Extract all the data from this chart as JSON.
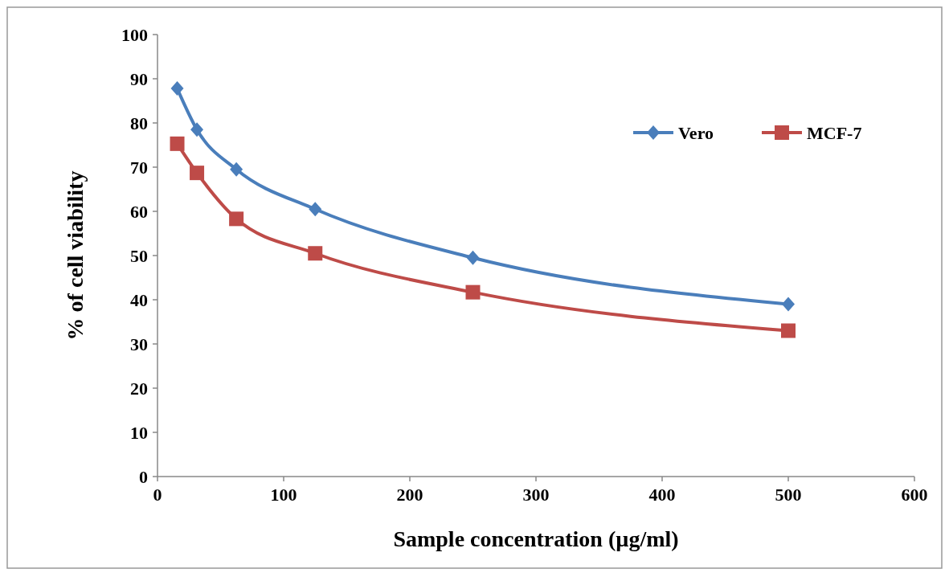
{
  "chart_data": {
    "type": "line",
    "xlabel": "Sample concentration (µg/ml)",
    "ylabel": "% of cell viability",
    "x": [
      15.625,
      31.25,
      62.5,
      125,
      250,
      500
    ],
    "series": [
      {
        "name": "Vero",
        "color": "#4a7ebb",
        "marker": "diamond",
        "values": [
          87.8,
          78.5,
          69.5,
          60.5,
          49.5,
          39
        ]
      },
      {
        "name": "MCF-7",
        "color": "#be4b48",
        "marker": "square",
        "values": [
          75.3,
          68.7,
          58.3,
          50.5,
          41.7,
          33
        ]
      }
    ],
    "xlim": [
      0,
      600
    ],
    "xticks": [
      0,
      100,
      200,
      300,
      400,
      500,
      600
    ],
    "ylim": [
      0,
      100
    ],
    "yticks": [
      0,
      10,
      20,
      30,
      40,
      50,
      60,
      70,
      80,
      90,
      100
    ],
    "grid": false,
    "legend": "top right",
    "line_style": "solid"
  }
}
